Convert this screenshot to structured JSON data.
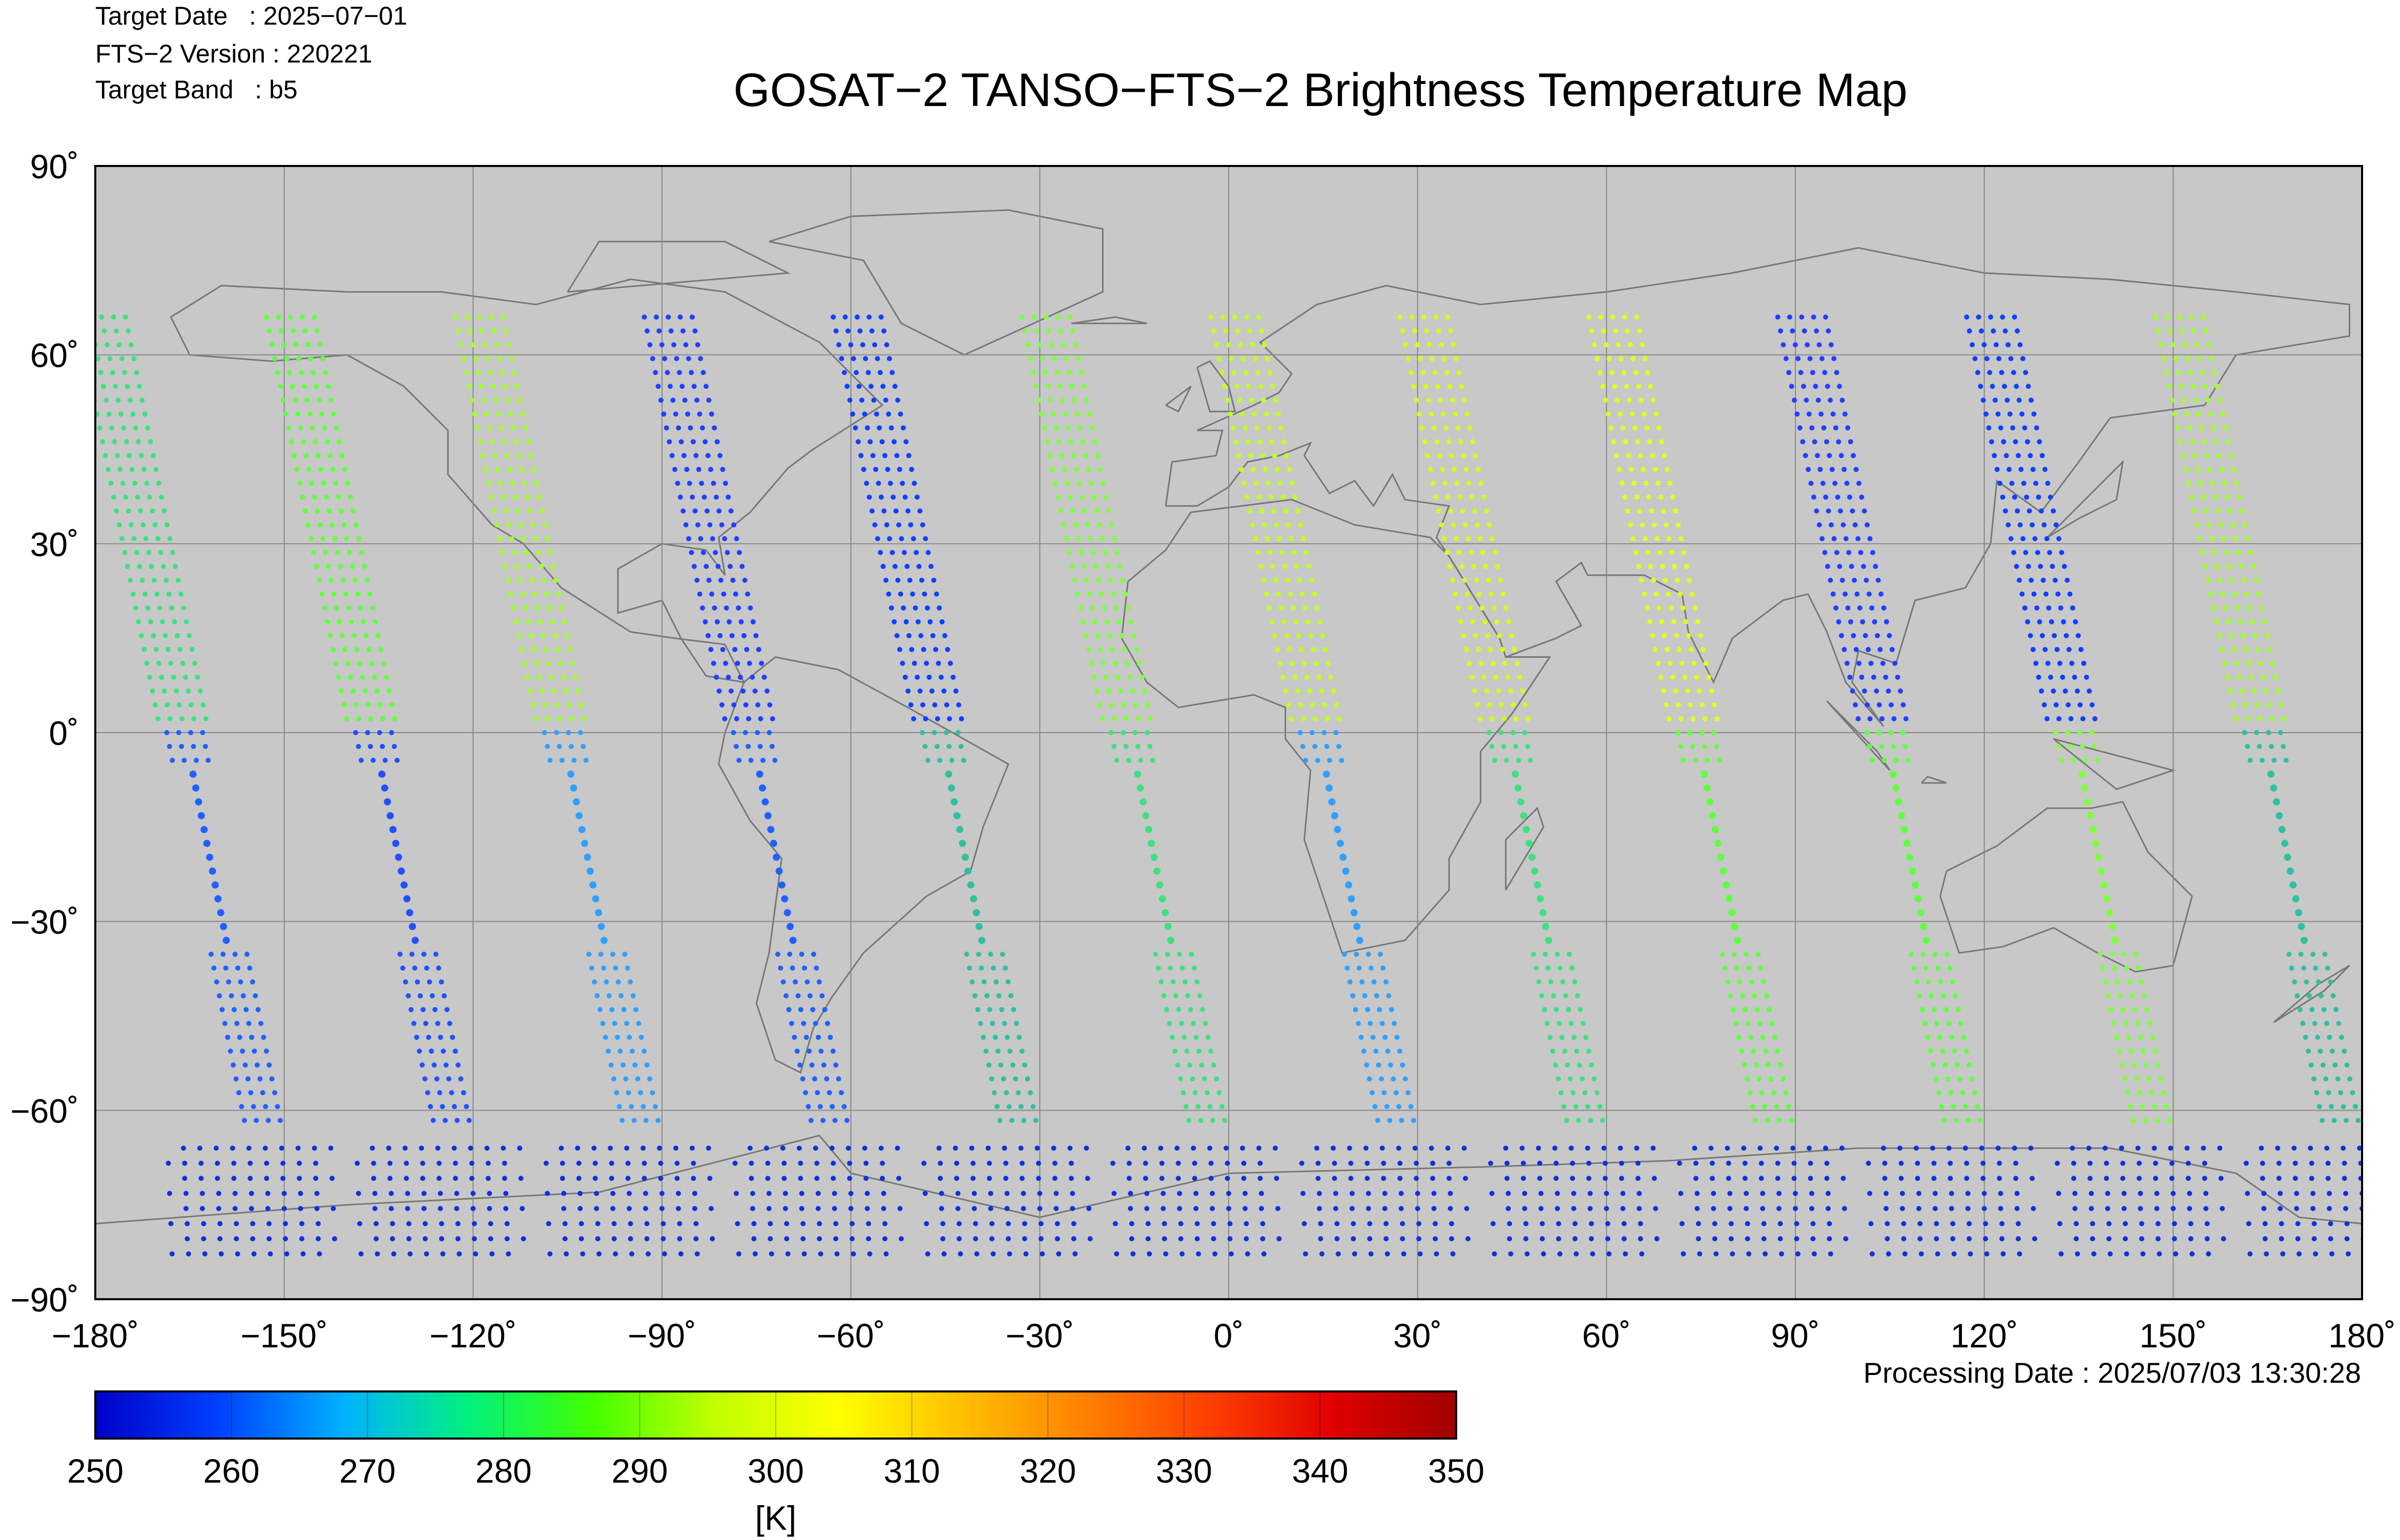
{
  "header": {
    "target_date": "Target Date   : 2025−07−01",
    "fts_version": "FTS−2 Version : 220221",
    "target_band": "Target Band   : b5",
    "title": "GOSAT−2 TANSO−FTS−2 Brightness Temperature Map"
  },
  "footer": {
    "processing_date": "Processing Date : 2025/07/03 13:30:28"
  },
  "map": {
    "background_color": "#c8c8c8",
    "coastline_color": "#777777",
    "grid_color": "#888888",
    "lon_range": [
      -180,
      180
    ],
    "lat_range": [
      -90,
      90
    ],
    "lon_ticks": [
      -180,
      -150,
      -120,
      -90,
      -60,
      -30,
      0,
      30,
      60,
      90,
      120,
      150,
      180
    ],
    "lat_ticks": [
      -90,
      -60,
      -30,
      0,
      30,
      60,
      90
    ],
    "lon_tick_labels": [
      "−180˚",
      "−150˚",
      "−120˚",
      "−90˚",
      "−60˚",
      "−30˚",
      "0˚",
      "30˚",
      "60˚",
      "90˚",
      "120˚",
      "150˚",
      "180˚"
    ],
    "lat_tick_labels": [
      "−90˚",
      "−60˚",
      "−30˚",
      "0˚",
      "30˚",
      "60˚",
      "90˚"
    ],
    "orbit_tracks": [
      {
        "lon_at_north": -179,
        "color_north": "#40e080",
        "color_south": "#2060ff"
      },
      {
        "lon_at_north": -149,
        "color_north": "#60ff40",
        "color_south": "#2050ff"
      },
      {
        "lon_at_north": -119,
        "color_north": "#a0ff30",
        "color_south": "#30a0ff"
      },
      {
        "lon_at_north": -89,
        "color_north": "#2040ff",
        "color_south": "#2060ff"
      },
      {
        "lon_at_north": -59,
        "color_north": "#1040ff",
        "color_south": "#30c0a0"
      },
      {
        "lon_at_north": -29,
        "color_north": "#80ff40",
        "color_south": "#40e080"
      },
      {
        "lon_at_north": 1,
        "color_north": "#c0ff20",
        "color_south": "#30a0ff"
      },
      {
        "lon_at_north": 31,
        "color_north": "#d0ff20",
        "color_south": "#40e080"
      },
      {
        "lon_at_north": 61,
        "color_north": "#e0ff20",
        "color_south": "#60ff40"
      },
      {
        "lon_at_north": 91,
        "color_north": "#2040ff",
        "color_south": "#60ff40"
      },
      {
        "lon_at_north": 121,
        "color_north": "#1040ff",
        "color_south": "#80ff40"
      },
      {
        "lon_at_north": 151,
        "color_north": "#a0ff30",
        "color_south": "#30c0a0"
      }
    ]
  },
  "colorbar": {
    "unit": "[K]",
    "ticks": [
      "250",
      "260",
      "270",
      "280",
      "290",
      "300",
      "310",
      "320",
      "330",
      "340",
      "350"
    ],
    "stops": [
      "#0000c8",
      "#0040ff",
      "#00b0ff",
      "#00f080",
      "#40ff00",
      "#c0ff00",
      "#ffff00",
      "#ffc000",
      "#ff8000",
      "#ff4000",
      "#e00000",
      "#a00000"
    ]
  }
}
